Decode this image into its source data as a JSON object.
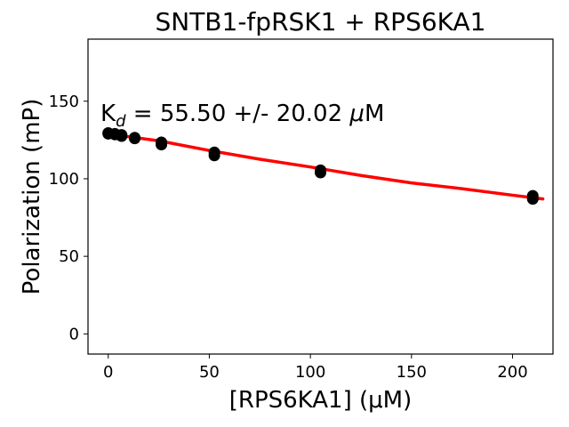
{
  "chart_data": {
    "type": "scatter",
    "title": "SNTB1-fpRSK1 + RPS6KA1",
    "xlabel": "[RPS6KA1] (μM)",
    "ylabel": "Polarization (mP)",
    "xlim": [
      -10,
      220
    ],
    "ylim": [
      -13,
      190
    ],
    "x_ticks": [
      0,
      50,
      100,
      150,
      200
    ],
    "y_ticks": [
      0,
      50,
      100,
      150
    ],
    "grid": false,
    "annotation": {
      "prefix": "K",
      "subscript": "d",
      "text": " = 55.50 +/- 20.02 ",
      "unit_mu": "μ",
      "unit": "M"
    },
    "points": [
      {
        "x": 0,
        "y": 129
      },
      {
        "x": 0,
        "y": 129.5
      },
      {
        "x": 3.3,
        "y": 128.5
      },
      {
        "x": 3.3,
        "y": 129
      },
      {
        "x": 6.6,
        "y": 127.5
      },
      {
        "x": 6.6,
        "y": 128.3
      },
      {
        "x": 13.1,
        "y": 126
      },
      {
        "x": 13.1,
        "y": 126.5
      },
      {
        "x": 26.3,
        "y": 122
      },
      {
        "x": 26.3,
        "y": 123.5
      },
      {
        "x": 52.5,
        "y": 115
      },
      {
        "x": 52.5,
        "y": 117
      },
      {
        "x": 105,
        "y": 104
      },
      {
        "x": 105,
        "y": 105.5
      },
      {
        "x": 210,
        "y": 87
      },
      {
        "x": 210,
        "y": 89
      }
    ],
    "fit": {
      "color": "#ff0000",
      "x": [
        0,
        10,
        25,
        50,
        75,
        100,
        125,
        150,
        175,
        200,
        215
      ],
      "y": [
        129,
        127.1,
        124.5,
        118.2,
        112.6,
        107.6,
        102.1,
        97.3,
        93.6,
        89.4,
        87
      ]
    },
    "point_color": "#000000"
  }
}
